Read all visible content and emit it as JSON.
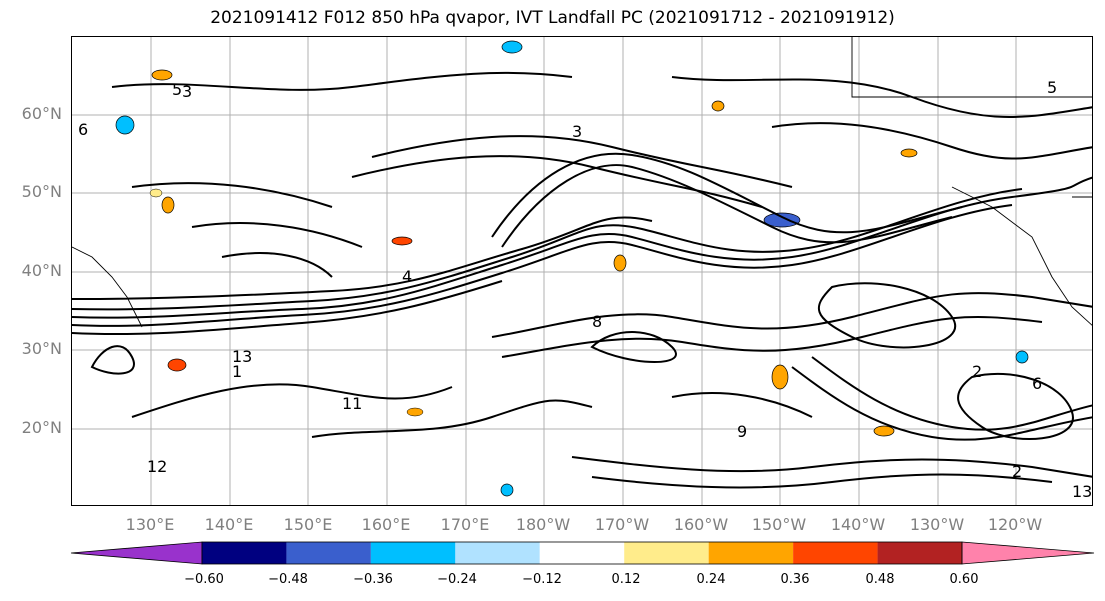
{
  "title": "2021091412 F012 850 hPa qvapor, IVT Landfall PC (2021091712 - 2021091912)",
  "map": {
    "lat_labels": [
      "60°N",
      "50°N",
      "40°N",
      "30°N",
      "20°N"
    ],
    "lon_labels": [
      "130°E",
      "140°E",
      "150°E",
      "160°E",
      "170°E",
      "180°W",
      "170°W",
      "160°W",
      "150°W",
      "140°W",
      "130°W",
      "120°W"
    ],
    "contour_labels": [
      "3",
      "5",
      "6",
      "2",
      "4",
      "3",
      "8",
      "13",
      "11",
      "9",
      "12",
      "13",
      "2",
      "6",
      "5",
      "1"
    ]
  },
  "colorbar": {
    "colors": [
      "#9932cc",
      "#000080",
      "#3a5fcd",
      "#00bfff",
      "#b0e2ff",
      "#ffffff",
      "#ffec8b",
      "#ffa500",
      "#ff4500",
      "#b22222",
      "#ff82ab"
    ],
    "ticks": [
      "−0.60",
      "−0.48",
      "−0.36",
      "−0.24",
      "−0.12",
      "0.12",
      "0.24",
      "0.36",
      "0.48",
      "0.60"
    ]
  }
}
